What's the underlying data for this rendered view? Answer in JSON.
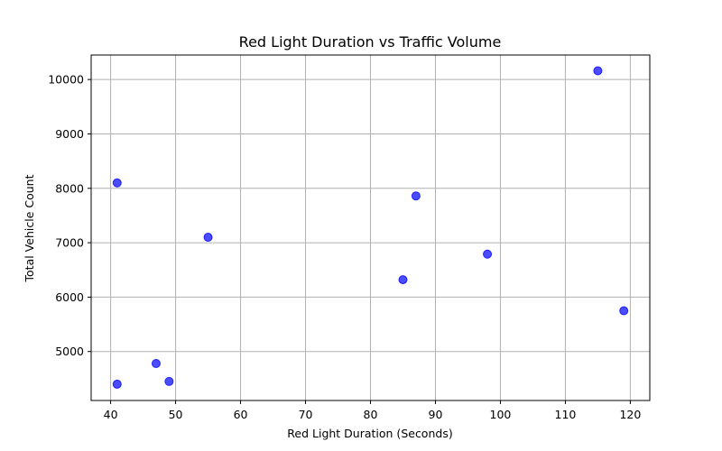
{
  "chart_data": {
    "type": "scatter",
    "title": "Red Light Duration vs Traffic Volume",
    "xlabel": "Red Light Duration (Seconds)",
    "ylabel": "Total Vehicle Count",
    "xlim": [
      37,
      123
    ],
    "ylim": [
      4100,
      10450
    ],
    "xticks": [
      40,
      50,
      60,
      70,
      80,
      90,
      100,
      110,
      120
    ],
    "yticks": [
      5000,
      6000,
      7000,
      8000,
      9000,
      10000
    ],
    "grid": true,
    "marker_color": "#0000ff",
    "series": [
      {
        "points": [
          {
            "x": 41,
            "y": 8100
          },
          {
            "x": 41,
            "y": 4400
          },
          {
            "x": 47,
            "y": 4780
          },
          {
            "x": 49,
            "y": 4450
          },
          {
            "x": 55,
            "y": 7100
          },
          {
            "x": 85,
            "y": 6320
          },
          {
            "x": 87,
            "y": 7860
          },
          {
            "x": 98,
            "y": 6790
          },
          {
            "x": 115,
            "y": 10160
          },
          {
            "x": 119,
            "y": 5750
          }
        ]
      }
    ]
  }
}
